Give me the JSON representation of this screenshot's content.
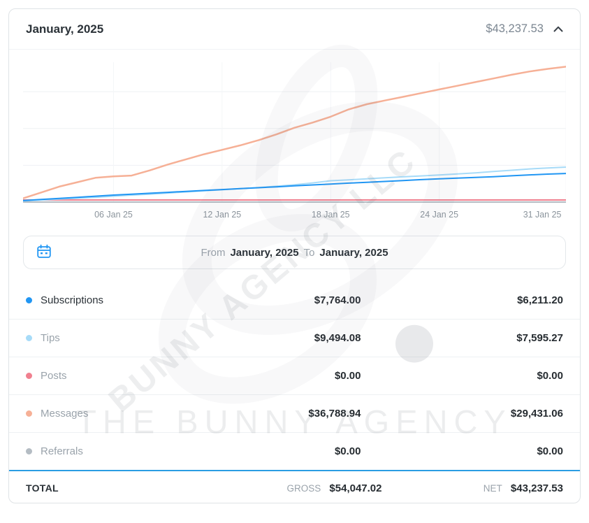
{
  "header": {
    "title": "January, 2025",
    "total": "$43,237.53"
  },
  "date_range": {
    "from_label": "From",
    "from_value": "January, 2025",
    "to_label": "To",
    "to_value": "January, 2025"
  },
  "chart_data": {
    "type": "line",
    "title": "",
    "xlabel": "",
    "ylabel": "",
    "grid": true,
    "legend_position": "none",
    "ylim": [
      0,
      38000
    ],
    "x_days": [
      1,
      2,
      3,
      4,
      5,
      6,
      7,
      8,
      9,
      10,
      11,
      12,
      13,
      14,
      15,
      16,
      17,
      18,
      19,
      20,
      21,
      22,
      23,
      24,
      25,
      26,
      27,
      28,
      29,
      30,
      31
    ],
    "ticks": [
      {
        "label": "06 Jan 25",
        "day": 6
      },
      {
        "label": "12 Jan 25",
        "day": 12
      },
      {
        "label": "18 Jan 25",
        "day": 18
      },
      {
        "label": "24 Jan 25",
        "day": 24
      },
      {
        "label": "31 Jan 25",
        "day": 31
      }
    ],
    "series": [
      {
        "name": "Subscriptions",
        "color": "#2196f3",
        "values": [
          400,
          700,
          1000,
          1300,
          1600,
          1900,
          2150,
          2400,
          2650,
          2900,
          3150,
          3400,
          3650,
          3900,
          4150,
          4400,
          4650,
          4900,
          5150,
          5350,
          5600,
          5850,
          6100,
          6300,
          6500,
          6700,
          6900,
          7150,
          7400,
          7600,
          7764
        ]
      },
      {
        "name": "Tips",
        "color": "#a7dbf8",
        "values": [
          300,
          550,
          800,
          1050,
          1300,
          1600,
          1900,
          2150,
          2450,
          2750,
          3050,
          3350,
          3650,
          3950,
          4300,
          4700,
          5200,
          5800,
          6050,
          6300,
          6600,
          6850,
          7100,
          7350,
          7650,
          7950,
          8300,
          8650,
          9000,
          9250,
          9494
        ]
      },
      {
        "name": "Posts",
        "color": "#f0808f",
        "values": [
          0,
          0,
          0,
          0,
          0,
          0,
          0,
          0,
          0,
          0,
          0,
          0,
          0,
          0,
          0,
          0,
          0,
          0,
          0,
          0,
          0,
          0,
          0,
          0,
          0,
          0,
          0,
          0,
          0,
          0,
          0
        ]
      },
      {
        "name": "Messages",
        "color": "#f6b096",
        "values": [
          1000,
          2600,
          4200,
          5400,
          6600,
          7000,
          7200,
          8600,
          10200,
          11600,
          13000,
          14200,
          15400,
          16800,
          18400,
          20200,
          21600,
          23200,
          25200,
          26600,
          27600,
          28600,
          29600,
          30600,
          31600,
          32600,
          33600,
          34600,
          35500,
          36200,
          36789
        ]
      },
      {
        "name": "Referrals",
        "color": "#b4bcc3",
        "values": [
          0,
          0,
          0,
          0,
          0,
          0,
          0,
          0,
          0,
          0,
          0,
          0,
          0,
          0,
          0,
          0,
          0,
          0,
          0,
          0,
          0,
          0,
          0,
          0,
          0,
          0,
          0,
          0,
          0,
          0,
          0
        ]
      }
    ]
  },
  "table": {
    "rows": [
      {
        "label": "Subscriptions",
        "color": "#2196f3",
        "gross": "$7,764.00",
        "net": "$6,211.20"
      },
      {
        "label": "Tips",
        "color": "#a7dbf8",
        "gross": "$9,494.08",
        "net": "$7,595.27"
      },
      {
        "label": "Posts",
        "color": "#f0808f",
        "gross": "$0.00",
        "net": "$0.00"
      },
      {
        "label": "Messages",
        "color": "#f6b096",
        "gross": "$36,788.94",
        "net": "$29,431.06"
      },
      {
        "label": "Referrals",
        "color": "#b4bcc3",
        "gross": "$0.00",
        "net": "$0.00"
      }
    ]
  },
  "total": {
    "label": "TOTAL",
    "gross_label": "GROSS",
    "gross_value": "$54,047.02",
    "net_label": "NET",
    "net_value": "$43,237.53"
  },
  "watermark": {
    "diagonal": "BUNNY AGENCY LLC",
    "horizontal": "THE BUNNY AGENCY"
  },
  "colors": {
    "accent": "#2196f3",
    "total_divider": "#2b9de3"
  }
}
